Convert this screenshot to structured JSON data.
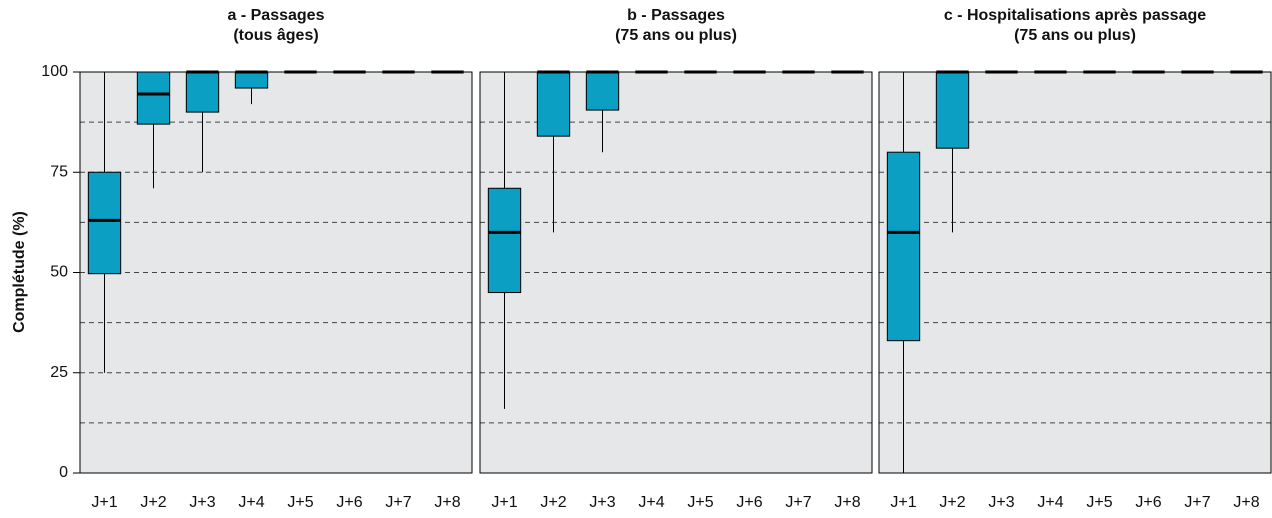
{
  "chart_data": [
    {
      "type": "box",
      "title": [
        "a - Passages",
        "(tous âges)"
      ],
      "ylabel": "Complétude (%)",
      "ylim": [
        0,
        100
      ],
      "yticks": [
        0,
        25,
        50,
        75,
        100
      ],
      "yminor": [
        12.5,
        37.5,
        62.5,
        87.5
      ],
      "grid": true,
      "color": "#0a9fc3",
      "categories": [
        "J+1",
        "J+2",
        "J+3",
        "J+4",
        "J+5",
        "J+6",
        "J+7",
        "J+8"
      ],
      "boxes": [
        {
          "min": 25,
          "q1": 49.7,
          "median": 63,
          "q3": 75,
          "max": 100
        },
        {
          "min": 71,
          "q1": 87,
          "median": 94.5,
          "q3": 100,
          "max": 100
        },
        {
          "min": 75,
          "q1": 90,
          "median": 100,
          "q3": 100,
          "max": 100
        },
        {
          "min": 92,
          "q1": 96,
          "median": 100,
          "q3": 100,
          "max": 100
        },
        {
          "min": 100,
          "q1": 100,
          "median": 100,
          "q3": 100,
          "max": 100
        },
        {
          "min": 100,
          "q1": 100,
          "median": 100,
          "q3": 100,
          "max": 100
        },
        {
          "min": 100,
          "q1": 100,
          "median": 100,
          "q3": 100,
          "max": 100
        },
        {
          "min": 100,
          "q1": 100,
          "median": 100,
          "q3": 100,
          "max": 100
        }
      ]
    },
    {
      "type": "box",
      "title": [
        "b - Passages",
        "(75 ans ou plus)"
      ],
      "sharey": true,
      "color": "#0a9fc3",
      "categories": [
        "J+1",
        "J+2",
        "J+3",
        "J+4",
        "J+5",
        "J+6",
        "J+7",
        "J+8"
      ],
      "boxes": [
        {
          "min": 16,
          "q1": 45,
          "median": 60,
          "q3": 71,
          "max": 100
        },
        {
          "min": 60,
          "q1": 84,
          "median": 100,
          "q3": 100,
          "max": 100
        },
        {
          "min": 80,
          "q1": 90.5,
          "median": 100,
          "q3": 100,
          "max": 100
        },
        {
          "min": 100,
          "q1": 100,
          "median": 100,
          "q3": 100,
          "max": 100
        },
        {
          "min": 100,
          "q1": 100,
          "median": 100,
          "q3": 100,
          "max": 100
        },
        {
          "min": 100,
          "q1": 100,
          "median": 100,
          "q3": 100,
          "max": 100
        },
        {
          "min": 100,
          "q1": 100,
          "median": 100,
          "q3": 100,
          "max": 100
        },
        {
          "min": 100,
          "q1": 100,
          "median": 100,
          "q3": 100,
          "max": 100
        }
      ]
    },
    {
      "type": "box",
      "title": [
        "c - Hospitalisations après passage",
        "(75 ans ou plus)"
      ],
      "sharey": true,
      "color": "#0a9fc3",
      "categories": [
        "J+1",
        "J+2",
        "J+3",
        "J+4",
        "J+5",
        "J+6",
        "J+7",
        "J+8"
      ],
      "boxes": [
        {
          "min": 0,
          "q1": 33,
          "median": 60,
          "q3": 80,
          "max": 100
        },
        {
          "min": 60,
          "q1": 81,
          "median": 100,
          "q3": 100,
          "max": 100
        },
        {
          "min": 100,
          "q1": 100,
          "median": 100,
          "q3": 100,
          "max": 100
        },
        {
          "min": 100,
          "q1": 100,
          "median": 100,
          "q3": 100,
          "max": 100
        },
        {
          "min": 100,
          "q1": 100,
          "median": 100,
          "q3": 100,
          "max": 100
        },
        {
          "min": 100,
          "q1": 100,
          "median": 100,
          "q3": 100,
          "max": 100
        },
        {
          "min": 100,
          "q1": 100,
          "median": 100,
          "q3": 100,
          "max": 100
        },
        {
          "min": 100,
          "q1": 100,
          "median": 100,
          "q3": 100,
          "max": 100
        }
      ]
    }
  ]
}
